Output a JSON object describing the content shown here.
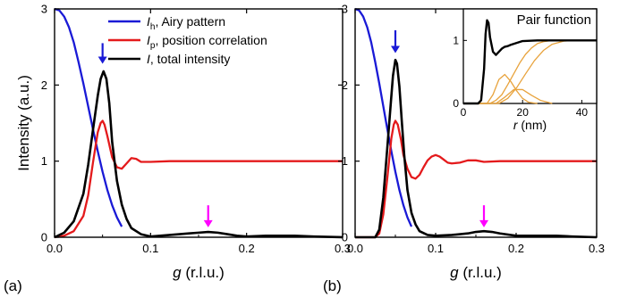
{
  "chart_data": [
    {
      "type": "line",
      "panel_label": "(a)",
      "xlabel": "g (r.l.u.)",
      "ylabel": "Intensity (a.u.)",
      "xlim": [
        0.0,
        0.3
      ],
      "ylim": [
        0,
        3
      ],
      "xticks": [
        "0.0",
        "0.1",
        "0.2",
        "0.3"
      ],
      "yticks": [
        "0",
        "1",
        "2",
        "3"
      ],
      "grid": false,
      "legend_position": "top-right",
      "legend": [
        {
          "symbol": "I",
          "sub": "h",
          "text": ", Airy pattern",
          "color": "#1a1ad6"
        },
        {
          "symbol": "I",
          "sub": "p",
          "text": ", position correlation",
          "color": "#e41a1c"
        },
        {
          "symbol": "I",
          "sub": "",
          "text": ", total intensity",
          "color": "#000000"
        }
      ],
      "series": [
        {
          "key": "Ih",
          "color": "#1a1ad6",
          "x": [
            0.0,
            0.005,
            0.01,
            0.015,
            0.02,
            0.025,
            0.03,
            0.035,
            0.04,
            0.045,
            0.05,
            0.055,
            0.06,
            0.065,
            0.07
          ],
          "y": [
            3.0,
            2.98,
            2.9,
            2.76,
            2.56,
            2.3,
            2.02,
            1.72,
            1.42,
            1.13,
            0.86,
            0.62,
            0.42,
            0.26,
            0.14
          ]
        },
        {
          "key": "Ip",
          "color": "#e41a1c",
          "x": [
            0.0,
            0.01,
            0.02,
            0.03,
            0.035,
            0.04,
            0.045,
            0.048,
            0.05,
            0.052,
            0.055,
            0.06,
            0.065,
            0.07,
            0.075,
            0.08,
            0.085,
            0.09,
            0.1,
            0.12,
            0.15,
            0.2,
            0.25,
            0.3
          ],
          "y": [
            0.0,
            0.02,
            0.08,
            0.28,
            0.55,
            0.98,
            1.38,
            1.5,
            1.53,
            1.48,
            1.33,
            1.05,
            0.92,
            0.9,
            0.97,
            1.04,
            1.03,
            0.99,
            0.99,
            1.0,
            1.0,
            1.0,
            1.0,
            1.0
          ]
        },
        {
          "key": "I",
          "color": "#000000",
          "x": [
            0.0,
            0.01,
            0.02,
            0.03,
            0.035,
            0.04,
            0.045,
            0.048,
            0.051,
            0.054,
            0.057,
            0.06,
            0.065,
            0.07,
            0.075,
            0.08,
            0.09,
            0.1,
            0.11,
            0.12,
            0.13,
            0.14,
            0.15,
            0.16,
            0.17,
            0.18,
            0.19,
            0.2,
            0.22,
            0.25,
            0.27,
            0.3
          ],
          "y": [
            0.0,
            0.06,
            0.21,
            0.57,
            0.95,
            1.41,
            1.86,
            2.08,
            2.18,
            2.08,
            1.76,
            1.25,
            0.74,
            0.43,
            0.24,
            0.12,
            0.04,
            0.01,
            0.02,
            0.03,
            0.04,
            0.05,
            0.06,
            0.07,
            0.06,
            0.04,
            0.02,
            0.01,
            0.02,
            0.02,
            0.01,
            0.0
          ]
        }
      ],
      "annotations": [
        {
          "type": "arrow",
          "x": 0.05,
          "y_tip": 2.28,
          "y_tail": 2.55,
          "color": "#1a1ad6"
        },
        {
          "type": "arrow",
          "x": 0.16,
          "y_tip": 0.13,
          "y_tail": 0.42,
          "color": "#ff00ff"
        }
      ]
    },
    {
      "type": "line",
      "panel_label": "(b)",
      "xlabel": "g (r.l.u.)",
      "ylabel": "",
      "xlim": [
        0.0,
        0.3
      ],
      "ylim": [
        0,
        3
      ],
      "xticks": [
        "0.0",
        "0.1",
        "0.2",
        "0.3"
      ],
      "yticks": [
        "0",
        "1",
        "2",
        "3"
      ],
      "grid": false,
      "series": [
        {
          "key": "Ih",
          "color": "#1a1ad6",
          "x": [
            0.0,
            0.005,
            0.01,
            0.015,
            0.02,
            0.025,
            0.03,
            0.035,
            0.04,
            0.045,
            0.05,
            0.055,
            0.06,
            0.065,
            0.07
          ],
          "y": [
            3.0,
            2.98,
            2.9,
            2.76,
            2.56,
            2.3,
            2.02,
            1.72,
            1.42,
            1.13,
            0.86,
            0.62,
            0.42,
            0.26,
            0.14
          ]
        },
        {
          "key": "Ip",
          "color": "#e41a1c",
          "x": [
            0.0,
            0.025,
            0.03,
            0.035,
            0.04,
            0.045,
            0.048,
            0.05,
            0.053,
            0.057,
            0.06,
            0.065,
            0.07,
            0.075,
            0.08,
            0.085,
            0.09,
            0.095,
            0.1,
            0.105,
            0.11,
            0.115,
            0.12,
            0.13,
            0.14,
            0.15,
            0.16,
            0.18,
            0.2,
            0.25,
            0.3
          ],
          "y": [
            0.0,
            0.0,
            0.05,
            0.3,
            0.78,
            1.3,
            1.48,
            1.53,
            1.48,
            1.28,
            1.08,
            0.9,
            0.79,
            0.77,
            0.82,
            0.92,
            1.01,
            1.06,
            1.08,
            1.06,
            1.02,
            0.98,
            0.97,
            0.98,
            1.01,
            1.01,
            0.99,
            1.0,
            1.0,
            1.0,
            1.0
          ]
        },
        {
          "key": "I",
          "color": "#000000",
          "x": [
            0.0,
            0.025,
            0.03,
            0.035,
            0.04,
            0.044,
            0.047,
            0.05,
            0.052,
            0.055,
            0.058,
            0.061,
            0.065,
            0.07,
            0.075,
            0.08,
            0.09,
            0.1,
            0.12,
            0.14,
            0.15,
            0.16,
            0.17,
            0.18,
            0.2,
            0.22,
            0.25,
            0.27,
            0.3
          ],
          "y": [
            0.0,
            0.0,
            0.1,
            0.52,
            1.18,
            1.72,
            2.12,
            2.33,
            2.28,
            1.98,
            1.52,
            1.08,
            0.62,
            0.32,
            0.17,
            0.08,
            0.03,
            0.02,
            0.03,
            0.05,
            0.07,
            0.08,
            0.07,
            0.05,
            0.02,
            0.02,
            0.02,
            0.01,
            0.0
          ]
        }
      ],
      "annotations": [
        {
          "type": "arrow",
          "x": 0.05,
          "y_tip": 2.42,
          "y_tail": 2.72,
          "color": "#1a1ad6"
        },
        {
          "type": "arrow",
          "x": 0.16,
          "y_tip": 0.13,
          "y_tail": 0.42,
          "color": "#ff00ff"
        }
      ],
      "inset": {
        "type": "line",
        "title": "Pair function",
        "xlabel": "r (nm)",
        "xlim": [
          0,
          45
        ],
        "ylim": [
          0,
          1.5
        ],
        "xticks": [
          "0",
          "20",
          "40"
        ],
        "yticks": [
          "0",
          "1"
        ],
        "series": [
          {
            "key": "total",
            "color": "#000000",
            "x": [
              0,
              5,
              6,
              7,
              7.5,
              8,
              8.5,
              9,
              10,
              11,
              12,
              13,
              14,
              15,
              16,
              18,
              20,
              25,
              30,
              35,
              40,
              45
            ],
            "y": [
              0,
              0,
              0.05,
              0.55,
              1.1,
              1.32,
              1.28,
              1.05,
              0.82,
              0.77,
              0.82,
              0.87,
              0.9,
              0.91,
              0.93,
              0.96,
              0.99,
              1.0,
              1.0,
              1.0,
              1.0,
              1.0
            ]
          },
          {
            "key": "shell1",
            "color": "#e8a33d",
            "x": [
              0,
              8,
              10,
              12,
              14,
              16,
              18,
              20,
              22,
              25
            ],
            "y": [
              0,
              0.0,
              0.14,
              0.38,
              0.46,
              0.35,
              0.2,
              0.08,
              0.02,
              0.0
            ]
          },
          {
            "key": "shell2",
            "color": "#e8a33d",
            "x": [
              0,
              11,
              14,
              17,
              20,
              23,
              26,
              30
            ],
            "y": [
              0,
              0.0,
              0.1,
              0.22,
              0.22,
              0.13,
              0.05,
              0.0
            ]
          },
          {
            "key": "cumulative1",
            "color": "#e8a33d",
            "x": [
              0,
              9,
              11,
              13,
              15,
              17,
              19,
              21,
              23,
              25,
              27,
              30,
              35,
              45
            ],
            "y": [
              0,
              0.0,
              0.05,
              0.14,
              0.3,
              0.47,
              0.64,
              0.78,
              0.88,
              0.95,
              0.98,
              1.0,
              1.0,
              1.0
            ]
          },
          {
            "key": "cumulative2",
            "color": "#e8a33d",
            "x": [
              0,
              12,
              15,
              18,
              21,
              24,
              27,
              30,
              34,
              38,
              45
            ],
            "y": [
              0,
              0.0,
              0.08,
              0.25,
              0.47,
              0.68,
              0.84,
              0.94,
              0.99,
              1.0,
              1.0
            ]
          }
        ]
      }
    }
  ]
}
